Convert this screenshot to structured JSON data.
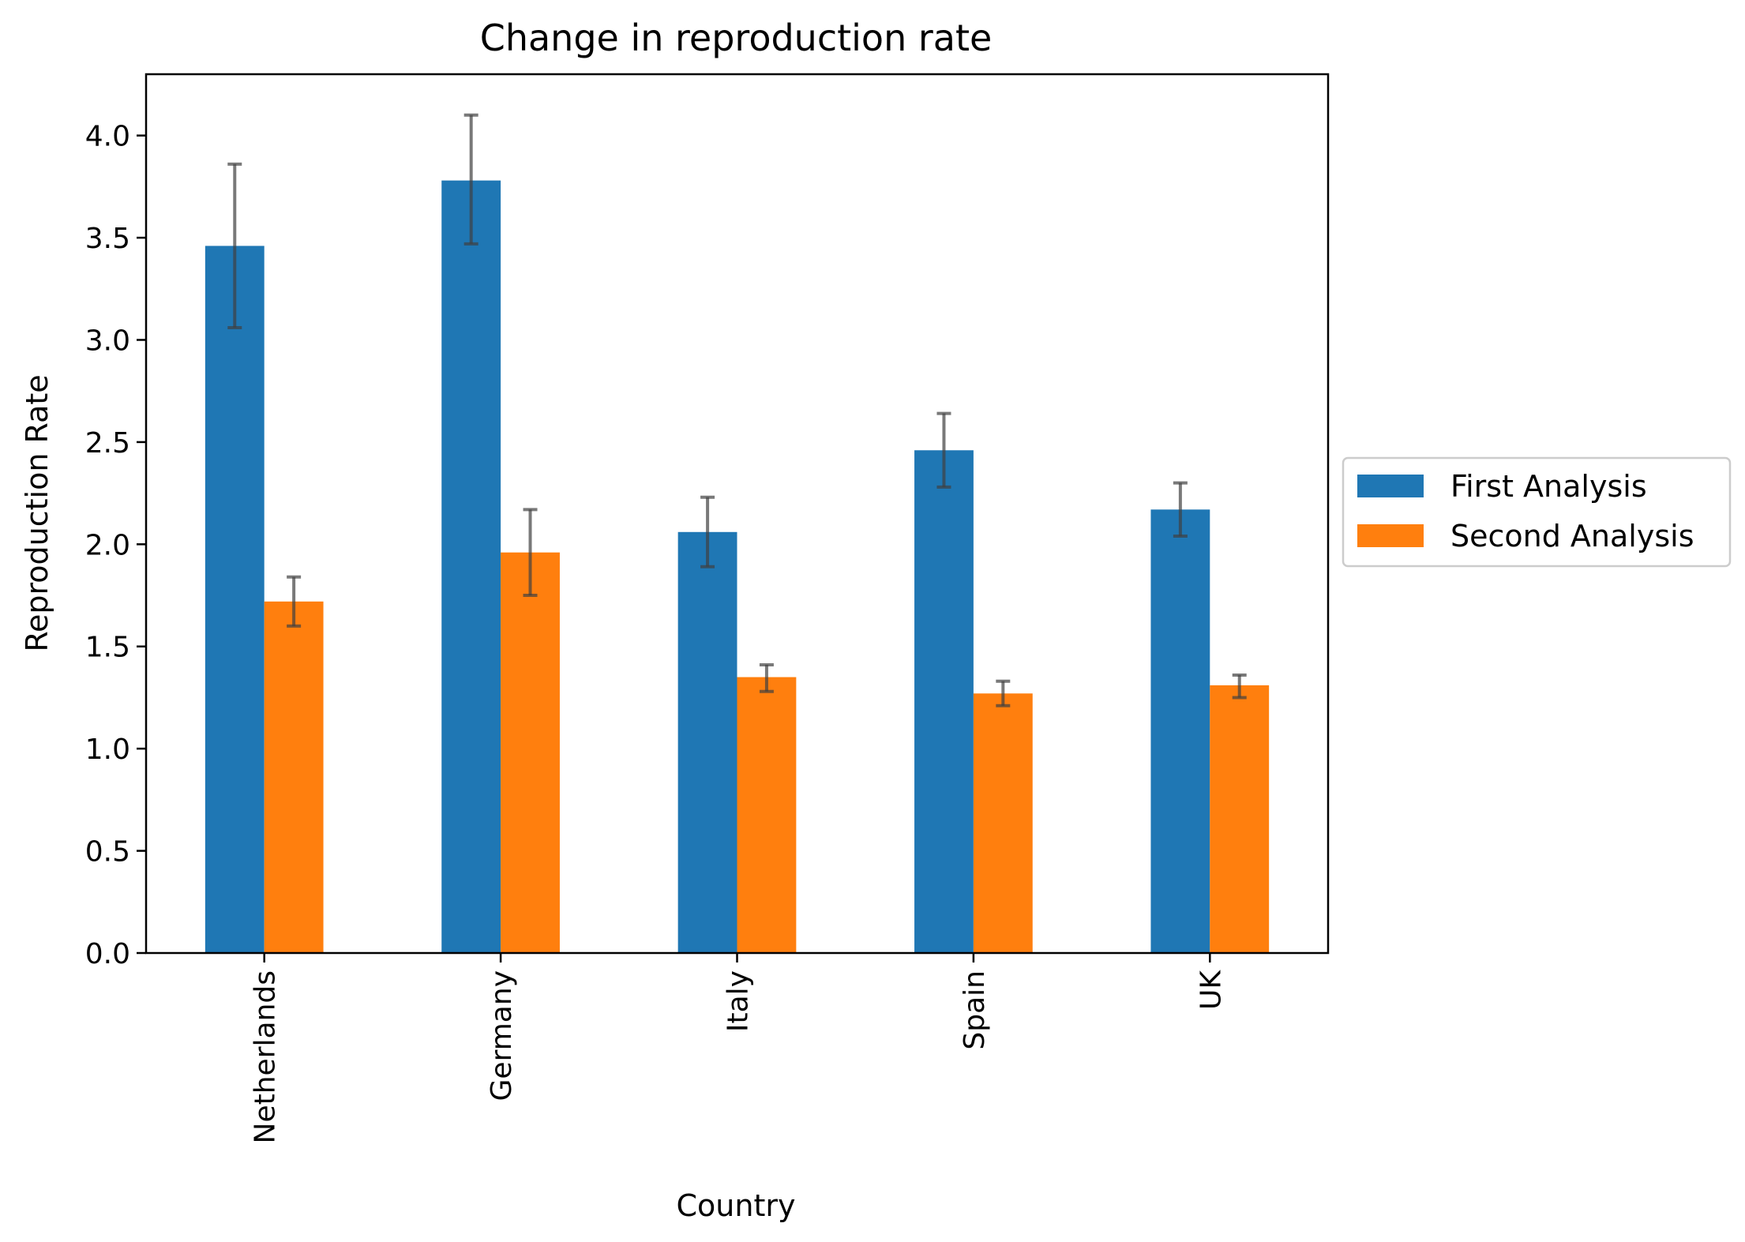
{
  "chart_data": {
    "type": "bar",
    "title": "Change in reproduction rate",
    "xlabel": "Country",
    "ylabel": "Reproduction Rate",
    "categories": [
      "Netherlands",
      "Germany",
      "Italy",
      "Spain",
      "UK"
    ],
    "series": [
      {
        "name": "First Analysis",
        "color": "#1f77b4",
        "values": [
          3.46,
          3.78,
          2.06,
          2.46,
          2.17
        ],
        "err_low": [
          3.06,
          3.47,
          1.89,
          2.28,
          2.04
        ],
        "err_high": [
          3.86,
          4.1,
          2.23,
          2.64,
          2.3
        ]
      },
      {
        "name": "Second Analysis",
        "color": "#ff7f0e",
        "values": [
          1.72,
          1.96,
          1.35,
          1.27,
          1.31
        ],
        "err_low": [
          1.6,
          1.75,
          1.28,
          1.21,
          1.25
        ],
        "err_high": [
          1.84,
          2.17,
          1.41,
          1.33,
          1.36
        ]
      }
    ],
    "ylim": [
      0.0,
      4.3
    ],
    "yticks": [
      "0.0",
      "0.5",
      "1.0",
      "1.5",
      "2.0",
      "2.5",
      "3.0",
      "3.5",
      "4.0"
    ],
    "grid": false,
    "legend_position": "right-outside",
    "error_bar_color": "#404040"
  }
}
